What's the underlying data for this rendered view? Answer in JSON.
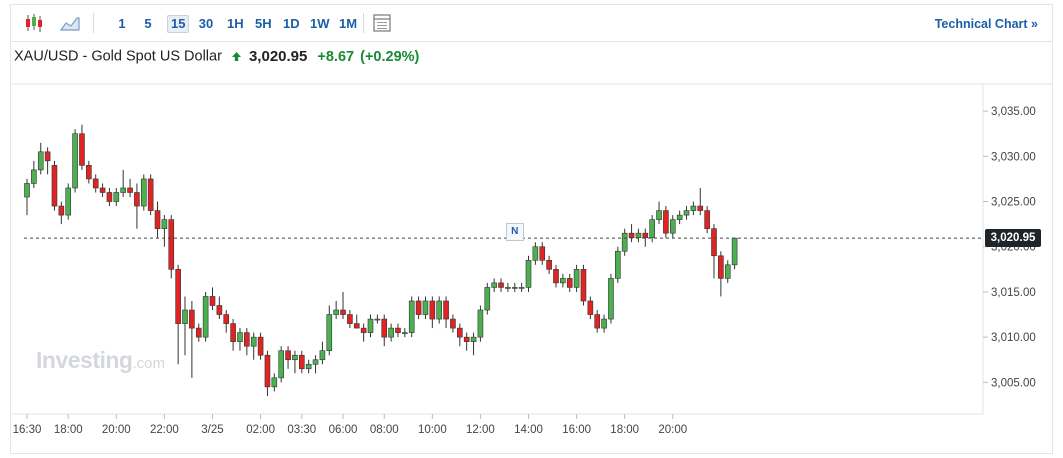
{
  "toolbar": {
    "icons": [
      "candlestick-icon",
      "area-chart-icon",
      "table-icon"
    ],
    "timeframes": [
      "1",
      "5",
      "15",
      "30",
      "1H",
      "5H",
      "1D",
      "1W",
      "1M"
    ],
    "active_timeframe": "15",
    "technical_chart_label": "Technical Chart »"
  },
  "quote": {
    "instrument": "XAU/USD - Gold Spot US Dollar",
    "last": "3,020.95",
    "change": "+8.67",
    "change_pct": "(+0.29%)"
  },
  "watermark": {
    "brand": "Investing",
    "suffix": ".com"
  },
  "news_marker": "N",
  "colors": {
    "up": "#4caf50",
    "down": "#e02424",
    "positive_text": "#178a34",
    "link": "#1a5fa8"
  },
  "chart_data": {
    "type": "candlestick",
    "title": "XAU/USD - Gold Spot US Dollar",
    "interval_minutes": 15,
    "ylim": [
      3001.5,
      3038
    ],
    "yticks": [
      3005,
      3010,
      3015,
      3020,
      3025,
      3030,
      3035
    ],
    "ytick_labels": [
      "3,005.00",
      "3,010.00",
      "3,015.00",
      "3,020.00",
      "3,025.00",
      "3,030.00",
      "3,035.00"
    ],
    "xtick_labels": [
      {
        "label": "16:30",
        "index": 0
      },
      {
        "label": "18:00",
        "index": 6
      },
      {
        "label": "20:00",
        "index": 13
      },
      {
        "label": "22:00",
        "index": 20
      },
      {
        "label": "3/25",
        "index": 27
      },
      {
        "label": "02:00",
        "index": 34
      },
      {
        "label": "03:30",
        "index": 40
      },
      {
        "label": "06:00",
        "index": 46
      },
      {
        "label": "08:00",
        "index": 52
      },
      {
        "label": "10:00",
        "index": 59
      },
      {
        "label": "12:00",
        "index": 66
      },
      {
        "label": "14:00",
        "index": 73
      },
      {
        "label": "16:00",
        "index": 80
      },
      {
        "label": "18:00",
        "index": 87
      },
      {
        "label": "20:00",
        "index": 94
      }
    ],
    "last_price": 3020.95,
    "last_price_label": "3,020.95",
    "news_index": 71,
    "candles": [
      [
        3025.5,
        3027.5,
        3023.5,
        3027.0
      ],
      [
        3027.0,
        3029.5,
        3026.5,
        3028.5
      ],
      [
        3028.5,
        3031.5,
        3028.0,
        3030.5
      ],
      [
        3030.5,
        3031.0,
        3028.0,
        3029.5
      ],
      [
        3029.0,
        3029.5,
        3024.0,
        3024.5
      ],
      [
        3024.5,
        3025.0,
        3022.5,
        3023.5
      ],
      [
        3023.5,
        3027.0,
        3023.0,
        3026.5
      ],
      [
        3026.5,
        3033.0,
        3026.0,
        3032.5
      ],
      [
        3032.5,
        3033.5,
        3028.5,
        3029.0
      ],
      [
        3029.0,
        3029.5,
        3027.0,
        3027.5
      ],
      [
        3027.5,
        3028.0,
        3026.0,
        3026.5
      ],
      [
        3026.5,
        3027.0,
        3025.5,
        3026.0
      ],
      [
        3026.0,
        3026.5,
        3024.5,
        3025.0
      ],
      [
        3025.0,
        3026.5,
        3024.5,
        3026.0
      ],
      [
        3026.0,
        3028.5,
        3025.5,
        3026.5
      ],
      [
        3026.5,
        3027.5,
        3025.5,
        3026.0
      ],
      [
        3026.0,
        3027.0,
        3022.0,
        3024.5
      ],
      [
        3024.5,
        3028.0,
        3024.0,
        3027.5
      ],
      [
        3027.5,
        3028.0,
        3023.5,
        3024.0
      ],
      [
        3024.0,
        3025.0,
        3021.0,
        3022.0
      ],
      [
        3022.0,
        3023.5,
        3020.0,
        3023.0
      ],
      [
        3023.0,
        3023.5,
        3016.5,
        3017.5
      ],
      [
        3017.5,
        3018.0,
        3007.0,
        3011.5
      ],
      [
        3011.5,
        3014.5,
        3008.0,
        3013.0
      ],
      [
        3013.0,
        3014.0,
        3005.5,
        3011.0
      ],
      [
        3011.0,
        3011.5,
        3009.5,
        3010.0
      ],
      [
        3010.0,
        3015.0,
        3009.5,
        3014.5
      ],
      [
        3014.5,
        3015.5,
        3013.0,
        3013.5
      ],
      [
        3013.5,
        3014.5,
        3012.0,
        3012.5
      ],
      [
        3012.5,
        3013.0,
        3010.5,
        3011.5
      ],
      [
        3011.5,
        3012.0,
        3008.5,
        3009.5
      ],
      [
        3009.5,
        3011.0,
        3008.5,
        3010.5
      ],
      [
        3010.5,
        3011.0,
        3008.0,
        3009.0
      ],
      [
        3009.0,
        3010.5,
        3007.5,
        3010.0
      ],
      [
        3010.0,
        3010.5,
        3007.5,
        3008.0
      ],
      [
        3008.0,
        3008.5,
        3003.5,
        3004.5
      ],
      [
        3004.5,
        3006.0,
        3004.0,
        3005.5
      ],
      [
        3005.5,
        3009.0,
        3005.0,
        3008.5
      ],
      [
        3008.5,
        3009.0,
        3006.5,
        3007.5
      ],
      [
        3007.5,
        3008.5,
        3006.0,
        3008.0
      ],
      [
        3008.0,
        3008.5,
        3006.0,
        3006.5
      ],
      [
        3006.5,
        3007.5,
        3006.0,
        3007.0
      ],
      [
        3007.0,
        3008.0,
        3006.0,
        3007.5
      ],
      [
        3007.5,
        3009.5,
        3007.0,
        3008.5
      ],
      [
        3008.5,
        3013.5,
        3008.0,
        3012.5
      ],
      [
        3012.5,
        3014.0,
        3012.0,
        3013.0
      ],
      [
        3013.0,
        3015.0,
        3012.0,
        3012.5
      ],
      [
        3012.5,
        3013.0,
        3011.0,
        3011.5
      ],
      [
        3011.5,
        3012.5,
        3011.0,
        3011.0
      ],
      [
        3011.0,
        3011.5,
        3009.5,
        3010.5
      ],
      [
        3010.5,
        3012.5,
        3010.0,
        3012.0
      ],
      [
        3012.0,
        3012.5,
        3011.5,
        3012.0
      ],
      [
        3012.0,
        3012.5,
        3009.0,
        3010.0
      ],
      [
        3010.0,
        3011.5,
        3009.5,
        3011.0
      ],
      [
        3011.0,
        3011.5,
        3010.0,
        3010.5
      ],
      [
        3010.5,
        3011.0,
        3010.0,
        3010.5
      ],
      [
        3010.5,
        3014.5,
        3010.0,
        3014.0
      ],
      [
        3014.0,
        3014.5,
        3012.0,
        3012.5
      ],
      [
        3012.5,
        3014.5,
        3012.0,
        3014.0
      ],
      [
        3014.0,
        3014.5,
        3011.0,
        3012.0
      ],
      [
        3012.0,
        3014.5,
        3011.5,
        3014.0
      ],
      [
        3014.0,
        3014.5,
        3011.0,
        3012.0
      ],
      [
        3012.0,
        3012.5,
        3010.5,
        3011.0
      ],
      [
        3011.0,
        3011.5,
        3009.0,
        3010.0
      ],
      [
        3010.0,
        3010.5,
        3008.5,
        3009.5
      ],
      [
        3009.5,
        3010.5,
        3008.0,
        3010.0
      ],
      [
        3010.0,
        3013.5,
        3009.5,
        3013.0
      ],
      [
        3013.0,
        3016.0,
        3012.5,
        3015.5
      ],
      [
        3015.5,
        3016.5,
        3015.0,
        3016.0
      ],
      [
        3016.0,
        3016.5,
        3015.0,
        3015.5
      ],
      [
        3015.5,
        3016.0,
        3015.0,
        3015.5
      ],
      [
        3015.5,
        3016.0,
        3015.0,
        3015.5
      ],
      [
        3015.5,
        3016.0,
        3015.0,
        3015.5
      ],
      [
        3015.5,
        3019.0,
        3015.0,
        3018.5
      ],
      [
        3018.5,
        3020.5,
        3018.0,
        3020.0
      ],
      [
        3020.0,
        3020.5,
        3018.0,
        3018.5
      ],
      [
        3018.5,
        3019.0,
        3017.0,
        3017.5
      ],
      [
        3017.5,
        3018.0,
        3015.5,
        3016.0
      ],
      [
        3016.0,
        3017.0,
        3015.5,
        3016.5
      ],
      [
        3016.5,
        3017.0,
        3015.0,
        3015.5
      ],
      [
        3015.5,
        3018.0,
        3015.0,
        3017.5
      ],
      [
        3017.5,
        3018.0,
        3013.5,
        3014.0
      ],
      [
        3014.0,
        3014.5,
        3012.0,
        3012.5
      ],
      [
        3012.5,
        3013.0,
        3010.5,
        3011.0
      ],
      [
        3011.0,
        3012.5,
        3010.5,
        3012.0
      ],
      [
        3012.0,
        3017.0,
        3011.5,
        3016.5
      ],
      [
        3016.5,
        3020.0,
        3016.0,
        3019.5
      ],
      [
        3019.5,
        3022.0,
        3019.0,
        3021.5
      ],
      [
        3021.5,
        3022.5,
        3020.5,
        3021.0
      ],
      [
        3021.0,
        3022.0,
        3020.5,
        3021.5
      ],
      [
        3021.5,
        3022.0,
        3020.0,
        3021.0
      ],
      [
        3021.0,
        3023.5,
        3020.5,
        3023.0
      ],
      [
        3023.0,
        3025.0,
        3022.5,
        3024.0
      ],
      [
        3024.0,
        3024.5,
        3021.0,
        3021.5
      ],
      [
        3021.5,
        3023.5,
        3021.0,
        3023.0
      ],
      [
        3023.0,
        3024.0,
        3022.5,
        3023.5
      ],
      [
        3023.5,
        3024.5,
        3023.0,
        3024.0
      ],
      [
        3024.0,
        3025.0,
        3023.5,
        3024.5
      ],
      [
        3024.5,
        3026.5,
        3023.5,
        3024.0
      ],
      [
        3024.0,
        3024.5,
        3021.5,
        3022.0
      ],
      [
        3022.0,
        3022.5,
        3016.5,
        3019.0
      ],
      [
        3019.0,
        3019.5,
        3014.5,
        3016.5
      ],
      [
        3016.5,
        3018.5,
        3016.0,
        3018.0
      ],
      [
        3018.0,
        3021.0,
        3017.5,
        3020.95
      ]
    ]
  }
}
